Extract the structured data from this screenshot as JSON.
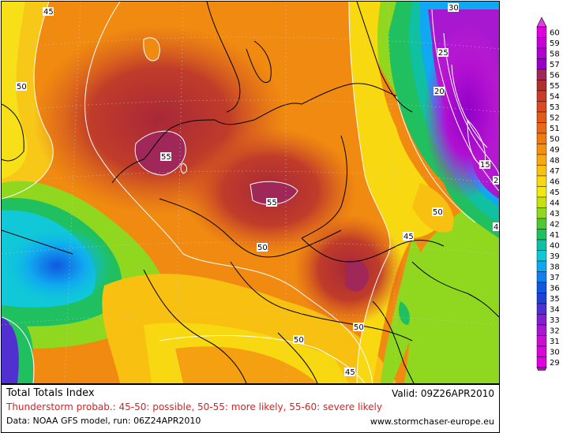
{
  "map": {
    "contour_labels": [
      {
        "value": "45"
      },
      {
        "value": "50"
      },
      {
        "value": "55"
      },
      {
        "value": "55"
      },
      {
        "value": "50"
      },
      {
        "value": "50"
      },
      {
        "value": "45"
      },
      {
        "value": "50"
      },
      {
        "value": "50"
      },
      {
        "value": "50"
      },
      {
        "value": "45"
      },
      {
        "value": "30"
      },
      {
        "value": "25"
      },
      {
        "value": "20"
      },
      {
        "value": "15"
      },
      {
        "value": "2"
      },
      {
        "value": "4"
      }
    ]
  },
  "legend": {
    "values": [
      "60",
      "59",
      "58",
      "57",
      "56",
      "55",
      "54",
      "53",
      "52",
      "51",
      "50",
      "49",
      "48",
      "47",
      "46",
      "45",
      "44",
      "43",
      "42",
      "41",
      "40",
      "39",
      "38",
      "37",
      "36",
      "35",
      "34",
      "33",
      "32",
      "31",
      "30",
      "29"
    ],
    "colors": [
      "#e000e0",
      "#c800d8",
      "#b000d0",
      "#9800c8",
      "#a02858",
      "#b03030",
      "#c83c28",
      "#d84a20",
      "#e05a18",
      "#e86818",
      "#f07a10",
      "#f49010",
      "#f8a810",
      "#f8c010",
      "#f8d810",
      "#f0e810",
      "#c8e010",
      "#90d820",
      "#50c830",
      "#20c060",
      "#10c0a0",
      "#10c8d8",
      "#10a8f0",
      "#1080f0",
      "#1058e0",
      "#2040d8",
      "#5030d0",
      "#8020d0",
      "#a818d0",
      "#c810d0",
      "#d808d8",
      "#e000e0"
    ],
    "triangle_colors": {
      "top": "#e040e0",
      "bottom": "#a020a0"
    }
  },
  "footer": {
    "title": "Total Totals Index",
    "valid": "Valid: 09Z26APR2010",
    "probability": "Thunderstorm probab.: 45-50: possible, 50-55: more likely, 55-60: severe likely",
    "source": "Data: NOAA GFS model, run: 06Z24APR2010",
    "website": "www.stormchaser-europe.eu"
  }
}
